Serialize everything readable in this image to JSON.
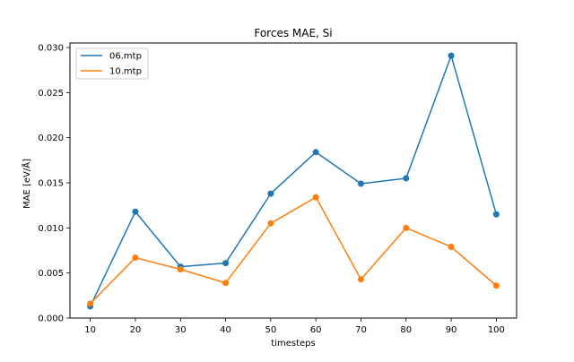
{
  "chart_data": {
    "type": "line",
    "title": "Forces MAE, Si",
    "xlabel": "timesteps",
    "ylabel": "MAE [eV/Å]",
    "x": [
      10,
      20,
      30,
      40,
      50,
      60,
      70,
      80,
      90,
      100
    ],
    "x_ticks": [
      "10",
      "20",
      "30",
      "40",
      "50",
      "60",
      "70",
      "80",
      "90",
      "100"
    ],
    "y_ticks": [
      "0.000",
      "0.005",
      "0.010",
      "0.015",
      "0.020",
      "0.025",
      "0.030"
    ],
    "xlim": [
      5.5,
      104.5
    ],
    "ylim": [
      0.0,
      0.0305
    ],
    "grid": false,
    "legend_position": "upper-left",
    "series": [
      {
        "name": "06.mtp",
        "color": "#1f77b4",
        "values": [
          0.0013,
          0.0118,
          0.0057,
          0.0061,
          0.0138,
          0.0184,
          0.0149,
          0.0155,
          0.0291,
          0.0115
        ]
      },
      {
        "name": "10.mtp",
        "color": "#ff7f0e",
        "values": [
          0.0016,
          0.0067,
          0.0054,
          0.0039,
          0.0105,
          0.0134,
          0.0043,
          0.01,
          0.0079,
          0.0036
        ]
      }
    ]
  }
}
